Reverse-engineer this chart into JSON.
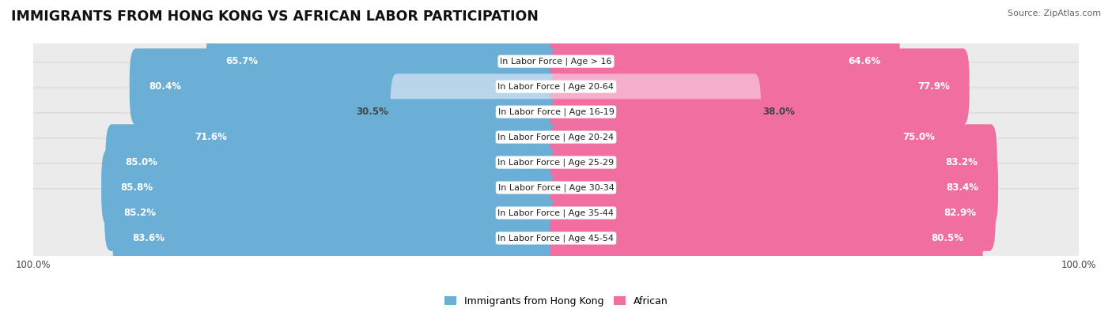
{
  "title": "IMMIGRANTS FROM HONG KONG VS AFRICAN LABOR PARTICIPATION",
  "source": "Source: ZipAtlas.com",
  "categories": [
    "In Labor Force | Age > 16",
    "In Labor Force | Age 20-64",
    "In Labor Force | Age 16-19",
    "In Labor Force | Age 20-24",
    "In Labor Force | Age 25-29",
    "In Labor Force | Age 30-34",
    "In Labor Force | Age 35-44",
    "In Labor Force | Age 45-54"
  ],
  "hk_values": [
    65.7,
    80.4,
    30.5,
    71.6,
    85.0,
    85.8,
    85.2,
    83.6
  ],
  "af_values": [
    64.6,
    77.9,
    38.0,
    75.0,
    83.2,
    83.4,
    82.9,
    80.5
  ],
  "hk_color": "#6baed6",
  "af_color": "#f06fa0",
  "hk_color_light": "#b8d5ea",
  "af_color_light": "#f5aecb",
  "row_bg_color": "#ebebeb",
  "row_bg_edge": "#d8d8d8",
  "bar_height": 0.62,
  "legend_hk": "Immigrants from Hong Kong",
  "legend_af": "African",
  "max_val": 100.0,
  "title_fontsize": 12.5,
  "label_fontsize": 8.5,
  "cat_fontsize": 8.0,
  "legend_fontsize": 9,
  "fig_width": 14.06,
  "fig_height": 3.95
}
